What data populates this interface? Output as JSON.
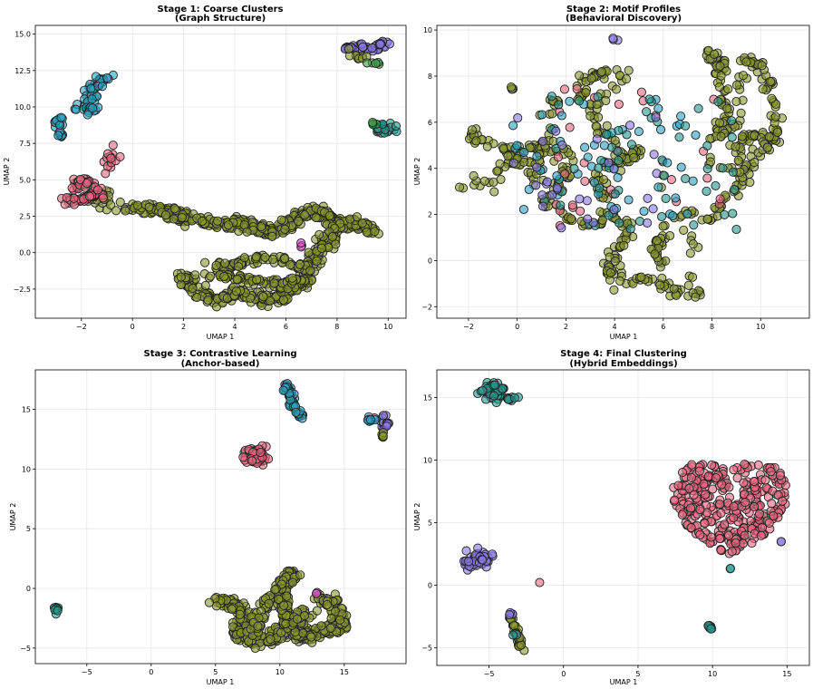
{
  "palette": {
    "olive": "#8c9a2e",
    "pink": "#e8687f",
    "cyan": "#2aa3c4",
    "teal": "#279a90",
    "purple": "#8a79e2",
    "magenta": "#d64fc8",
    "green": "#3e9b45",
    "blue": "#4c7ed6"
  },
  "chart_data": [
    {
      "type": "scatter",
      "title": "Stage 1: Coarse Clusters",
      "subtitle": "(Graph Structure)",
      "xlabel": "UMAP 1",
      "ylabel": "UMAP 2",
      "xlim": [
        -3.8,
        10.7
      ],
      "ylim": [
        -4.5,
        15.6
      ],
      "xticks": [
        -2,
        0,
        2,
        4,
        6,
        8,
        10
      ],
      "yticks": [
        -2.5,
        0.0,
        2.5,
        5.0,
        7.5,
        10.0,
        12.5,
        15.0
      ],
      "ytick_labels": [
        "−2.5",
        "0.0",
        "2.5",
        "5.0",
        "7.5",
        "10.0",
        "12.5",
        "15.0"
      ],
      "grid": true,
      "clusters": [
        {
          "color": "olive",
          "n": 400,
          "shape": "band",
          "points": [
            [
              0,
              3.1
            ],
            [
              1.5,
              2.8
            ],
            [
              2.2,
              2.3
            ],
            [
              3.5,
              2.0
            ],
            [
              4.5,
              1.9
            ],
            [
              5.5,
              1.3
            ],
            [
              6.5,
              2.6
            ],
            [
              7.2,
              2.8
            ],
            [
              8.5,
              2.0
            ],
            [
              9.5,
              1.6
            ]
          ],
          "width": 0.45
        },
        {
          "color": "olive",
          "n": 260,
          "shape": "band",
          "points": [
            [
              2.0,
              -1.5
            ],
            [
              2.3,
              -2.5
            ],
            [
              3.3,
              -3.3
            ],
            [
              4.2,
              -2.7
            ],
            [
              5.2,
              -3.3
            ],
            [
              6.0,
              -3.0
            ],
            [
              6.8,
              -2.0
            ],
            [
              7.2,
              -0.3
            ],
            [
              7.6,
              0.8
            ],
            [
              8.0,
              2.0
            ]
          ],
          "width": 0.4
        },
        {
          "color": "olive",
          "n": 150,
          "shape": "band",
          "points": [
            [
              3.0,
              -0.8
            ],
            [
              4.0,
              -0.9
            ],
            [
              5.0,
              -0.4
            ],
            [
              6.0,
              -0.6
            ],
            [
              6.8,
              -1.2
            ],
            [
              6.2,
              -2.2
            ],
            [
              5.0,
              -2.0
            ],
            [
              4.0,
              -1.6
            ],
            [
              2.8,
              -1.6
            ]
          ],
          "width": 0.35
        },
        {
          "color": "olive",
          "n": 25,
          "shape": "blob",
          "cx": -1.2,
          "cy": 3.8,
          "sx": 0.35,
          "sy": 0.5
        },
        {
          "color": "pink",
          "n": 90,
          "shape": "band",
          "points": [
            [
              -2.6,
              3.5
            ],
            [
              -2.0,
              3.6
            ],
            [
              -1.4,
              4.0
            ],
            [
              -1.6,
              4.6
            ],
            [
              -2.0,
              5.0
            ],
            [
              -2.3,
              4.3
            ]
          ],
          "width": 0.3
        },
        {
          "color": "pink",
          "n": 14,
          "shape": "blob",
          "cx": -0.9,
          "cy": 6.5,
          "sx": 0.18,
          "sy": 0.35
        },
        {
          "color": "cyan",
          "n": 50,
          "shape": "band",
          "points": [
            [
              -2.1,
              9.9
            ],
            [
              -1.6,
              10.6
            ],
            [
              -1.6,
              11.3
            ],
            [
              -1.2,
              11.8
            ],
            [
              -1.0,
              12.0
            ]
          ],
          "width": 0.28
        },
        {
          "color": "cyan",
          "n": 12,
          "shape": "blob",
          "cx": -1.6,
          "cy": 9.8,
          "sx": 0.2,
          "sy": 0.2
        },
        {
          "color": "cyan",
          "n": 24,
          "shape": "band",
          "points": [
            [
              -3.0,
              8.9
            ],
            [
              -2.8,
              9.2
            ],
            [
              -2.9,
              8.1
            ],
            [
              -2.7,
              7.9
            ]
          ],
          "width": 0.18
        },
        {
          "color": "purple",
          "n": 55,
          "shape": "band",
          "points": [
            [
              8.3,
              14.0
            ],
            [
              8.9,
              14.2
            ],
            [
              9.4,
              14.0
            ],
            [
              9.9,
              14.4
            ]
          ],
          "width": 0.25
        },
        {
          "color": "olive",
          "n": 10,
          "shape": "blob",
          "cx": 8.9,
          "cy": 13.4,
          "sx": 0.2,
          "sy": 0.2
        },
        {
          "color": "teal",
          "n": 26,
          "shape": "blob",
          "cx": 9.8,
          "cy": 8.5,
          "sx": 0.25,
          "sy": 0.2
        },
        {
          "color": "green",
          "n": 5,
          "shape": "blob",
          "cx": 9.5,
          "cy": 12.9,
          "sx": 0.15,
          "sy": 0.12
        },
        {
          "color": "green",
          "n": 4,
          "shape": "blob",
          "cx": 9.4,
          "cy": 8.9,
          "sx": 0.08,
          "sy": 0.08
        },
        {
          "color": "magenta",
          "n": 3,
          "shape": "blob",
          "cx": 6.6,
          "cy": 0.5,
          "sx": 0.08,
          "sy": 0.08
        }
      ]
    },
    {
      "type": "scatter",
      "title": "Stage 2: Motif Profiles",
      "subtitle": "(Behavioral Discovery)",
      "xlabel": "UMAP 1",
      "ylabel": "UMAP 2",
      "xlim": [
        -3.3,
        12.0
      ],
      "ylim": [
        -2.5,
        10.2
      ],
      "xticks": [
        -2,
        0,
        2,
        4,
        6,
        8,
        10
      ],
      "yticks": [
        -2,
        0,
        2,
        4,
        6,
        8,
        10
      ],
      "ytick_labels": [
        "−2",
        "0",
        "2",
        "4",
        "6",
        "8",
        "10"
      ],
      "grid": true,
      "clusters": [
        {
          "color": "olive",
          "n": 260,
          "shape": "band",
          "points": [
            [
              -2.3,
              3.2
            ],
            [
              -1.0,
              3.4
            ],
            [
              -0.3,
              4.5
            ],
            [
              1.0,
              5.0
            ],
            [
              2.0,
              4.6
            ],
            [
              2.0,
              3.5
            ],
            [
              1.0,
              2.8
            ],
            [
              1.8,
              2.0
            ],
            [
              3.0,
              1.5
            ],
            [
              3.7,
              2.0
            ],
            [
              4.5,
              1.6
            ],
            [
              4.3,
              0.6
            ],
            [
              3.5,
              -0.3
            ],
            [
              4.5,
              -1.0
            ],
            [
              5.5,
              -0.8
            ],
            [
              6.5,
              -1.3
            ],
            [
              7.3,
              -1.4
            ],
            [
              7.2,
              0.8
            ],
            [
              6.8,
              1.9
            ],
            [
              7.8,
              1.8
            ],
            [
              8.7,
              2.6
            ],
            [
              9.5,
              3.8
            ],
            [
              9.0,
              5.0
            ],
            [
              10.0,
              5.5
            ],
            [
              10.8,
              5.0
            ]
          ],
          "width": 0.35
        },
        {
          "color": "olive",
          "n": 170,
          "shape": "band",
          "points": [
            [
              -2.0,
              5.5
            ],
            [
              -1.0,
              5.0
            ],
            [
              -0.2,
              4.6
            ],
            [
              0.5,
              4.2
            ],
            [
              0.8,
              3.3
            ],
            [
              1.5,
              6.8
            ],
            [
              2.5,
              7.0
            ],
            [
              2.8,
              7.8
            ],
            [
              3.5,
              8.2
            ],
            [
              4.5,
              8.0
            ],
            [
              3.0,
              6.5
            ],
            [
              3.8,
              5.3
            ],
            [
              4.5,
              4.2
            ],
            [
              5.0,
              4.8
            ],
            [
              3.2,
              3.5
            ],
            [
              3.5,
              2.6
            ]
          ],
          "width": 0.32
        },
        {
          "color": "olive",
          "n": 150,
          "shape": "band",
          "points": [
            [
              7.7,
              8.9
            ],
            [
              8.4,
              8.6
            ],
            [
              8.2,
              7.8
            ],
            [
              8.7,
              6.5
            ],
            [
              8.2,
              5.3
            ],
            [
              9.0,
              5.8
            ],
            [
              9.3,
              8.8
            ],
            [
              10.0,
              8.4
            ],
            [
              10.5,
              7.0
            ],
            [
              10.7,
              5.7
            ],
            [
              10.2,
              4.9
            ],
            [
              9.4,
              3.6
            ],
            [
              8.0,
              4.3
            ]
          ],
          "width": 0.3
        },
        {
          "color": "olive",
          "n": 30,
          "shape": "band",
          "points": [
            [
              5.7,
              4.4
            ],
            [
              6.1,
              1.0
            ],
            [
              5.6,
              0.5
            ],
            [
              5.9,
              -0.1
            ]
          ],
          "width": 0.25
        },
        {
          "color": "pink",
          "n": 30,
          "shape": "scatter",
          "cx": 5.0,
          "cy": 4.5,
          "sx": 3.5,
          "sy": 3.0
        },
        {
          "color": "cyan",
          "n": 55,
          "shape": "scatter",
          "cx": 3.6,
          "cy": 4.2,
          "sx": 3.8,
          "sy": 2.8
        },
        {
          "color": "teal",
          "n": 55,
          "shape": "scatter",
          "cx": 5.0,
          "cy": 4.2,
          "sx": 4.2,
          "sy": 3.0
        },
        {
          "color": "purple",
          "n": 30,
          "shape": "scatter",
          "cx": 2.8,
          "cy": 3.8,
          "sx": 3.0,
          "sy": 2.6
        },
        {
          "color": "purple",
          "n": 3,
          "shape": "blob",
          "cx": 4.0,
          "cy": 9.6,
          "sx": 0.05,
          "sy": 0.08
        },
        {
          "color": "olive",
          "n": 4,
          "shape": "blob",
          "cx": -0.2,
          "cy": 7.5,
          "sx": 0.06,
          "sy": 0.06
        }
      ]
    },
    {
      "type": "scatter",
      "title": "Stage 3: Contrastive Learning",
      "subtitle": "(Anchor-based)",
      "xlabel": "UMAP 1",
      "ylabel": "UMAP 2",
      "xlim": [
        -9.0,
        19.8
      ],
      "ylim": [
        -6.3,
        18.3
      ],
      "xticks": [
        -5,
        0,
        5,
        10,
        15
      ],
      "yticks": [
        -5,
        0,
        5,
        10,
        15
      ],
      "ytick_labels": [
        "−5",
        "0",
        "5",
        "10",
        "15"
      ],
      "grid": true,
      "clusters": [
        {
          "color": "olive",
          "n": 360,
          "shape": "band",
          "points": [
            [
              5.0,
              -1.0
            ],
            [
              6.5,
              -1.3
            ],
            [
              7.5,
              -2.5
            ],
            [
              6.5,
              -3.8
            ],
            [
              8.0,
              -4.5
            ],
            [
              9.5,
              -4.2
            ],
            [
              10.5,
              -3.2
            ],
            [
              11.5,
              -4.0
            ],
            [
              12.5,
              -4.0
            ],
            [
              13.5,
              -3.5
            ],
            [
              14.8,
              -3.2
            ],
            [
              14.3,
              -1.5
            ],
            [
              13.3,
              -0.8
            ]
          ],
          "width": 0.6
        },
        {
          "color": "olive",
          "n": 200,
          "shape": "band",
          "points": [
            [
              8.0,
              -4.0
            ],
            [
              8.5,
              -2.0
            ],
            [
              9.5,
              -0.5
            ],
            [
              10.5,
              0.5
            ],
            [
              11.0,
              1.3
            ],
            [
              10.2,
              -1.0
            ],
            [
              10.5,
              -2.5
            ],
            [
              11.5,
              -2.5
            ],
            [
              12.5,
              -2.0
            ]
          ],
          "width": 0.55
        },
        {
          "color": "pink",
          "n": 70,
          "shape": "blob",
          "cx": 8.1,
          "cy": 11.2,
          "sx": 0.45,
          "sy": 0.35
        },
        {
          "color": "cyan",
          "n": 55,
          "shape": "band",
          "points": [
            [
              10.4,
              17.0
            ],
            [
              10.9,
              16.3
            ],
            [
              11.0,
              15.3
            ],
            [
              11.6,
              14.3
            ]
          ],
          "width": 0.3
        },
        {
          "color": "purple",
          "n": 20,
          "shape": "blob",
          "cx": 18.2,
          "cy": 14.0,
          "sx": 0.15,
          "sy": 0.4
        },
        {
          "color": "cyan",
          "n": 8,
          "shape": "blob",
          "cx": 17.2,
          "cy": 14.2,
          "sx": 0.2,
          "sy": 0.1
        },
        {
          "color": "olive",
          "n": 5,
          "shape": "blob",
          "cx": 18.0,
          "cy": 12.8,
          "sx": 0.08,
          "sy": 0.12
        },
        {
          "color": "teal",
          "n": 8,
          "shape": "blob",
          "cx": -7.4,
          "cy": -1.7,
          "sx": 0.12,
          "sy": 0.12
        },
        {
          "color": "magenta",
          "n": 2,
          "shape": "blob",
          "cx": 12.9,
          "cy": -0.4,
          "sx": 0.05,
          "sy": 0.05
        }
      ]
    },
    {
      "type": "scatter",
      "title": "Stage 4: Final Clustering",
      "subtitle": "(Hybrid Embeddings)",
      "xlabel": "UMAP 1",
      "ylabel": "UMAP 2",
      "xlim": [
        -8.5,
        16.5
      ],
      "ylim": [
        -6.4,
        17.2
      ],
      "xticks": [
        -5,
        0,
        5,
        10,
        15
      ],
      "yticks": [
        -5,
        0,
        5,
        10,
        15
      ],
      "ytick_labels": [
        "−5",
        "0",
        "5",
        "10",
        "15"
      ],
      "grid": true,
      "clusters": [
        {
          "color": "pink",
          "n": 330,
          "shape": "heart",
          "cx": 11.2,
          "cy": 5.6
        },
        {
          "color": "teal",
          "n": 45,
          "shape": "blob",
          "cx": -4.6,
          "cy": 15.6,
          "sx": 0.45,
          "sy": 0.35
        },
        {
          "color": "teal",
          "n": 8,
          "shape": "blob",
          "cx": -3.5,
          "cy": 14.9,
          "sx": 0.2,
          "sy": 0.08
        },
        {
          "color": "purple",
          "n": 50,
          "shape": "blob",
          "cx": -5.9,
          "cy": 2.0,
          "sx": 0.45,
          "sy": 0.35
        },
        {
          "color": "olive",
          "n": 35,
          "shape": "band",
          "points": [
            [
              -3.5,
              -2.4
            ],
            [
              -3.3,
              -3.5
            ],
            [
              -3.0,
              -4.3
            ],
            [
              -2.8,
              -5.2
            ]
          ],
          "width": 0.2
        },
        {
          "color": "purple",
          "n": 4,
          "shape": "blob",
          "cx": -3.5,
          "cy": -2.3,
          "sx": 0.08,
          "sy": 0.08
        },
        {
          "color": "teal",
          "n": 4,
          "shape": "blob",
          "cx": -3.2,
          "cy": -3.8,
          "sx": 0.08,
          "sy": 0.08
        },
        {
          "color": "teal",
          "n": 8,
          "shape": "blob",
          "cx": 9.9,
          "cy": -3.3,
          "sx": 0.12,
          "sy": 0.1
        },
        {
          "color": "pink",
          "n": 1,
          "shape": "blob",
          "cx": -1.6,
          "cy": 0.2,
          "sx": 0.02,
          "sy": 0.02
        },
        {
          "color": "purple",
          "n": 2,
          "shape": "blob",
          "cx": 14.6,
          "cy": 3.5,
          "sx": 0.04,
          "sy": 0.04
        },
        {
          "color": "teal",
          "n": 2,
          "shape": "blob",
          "cx": 11.2,
          "cy": 1.3,
          "sx": 0.03,
          "sy": 0.03
        }
      ]
    }
  ]
}
